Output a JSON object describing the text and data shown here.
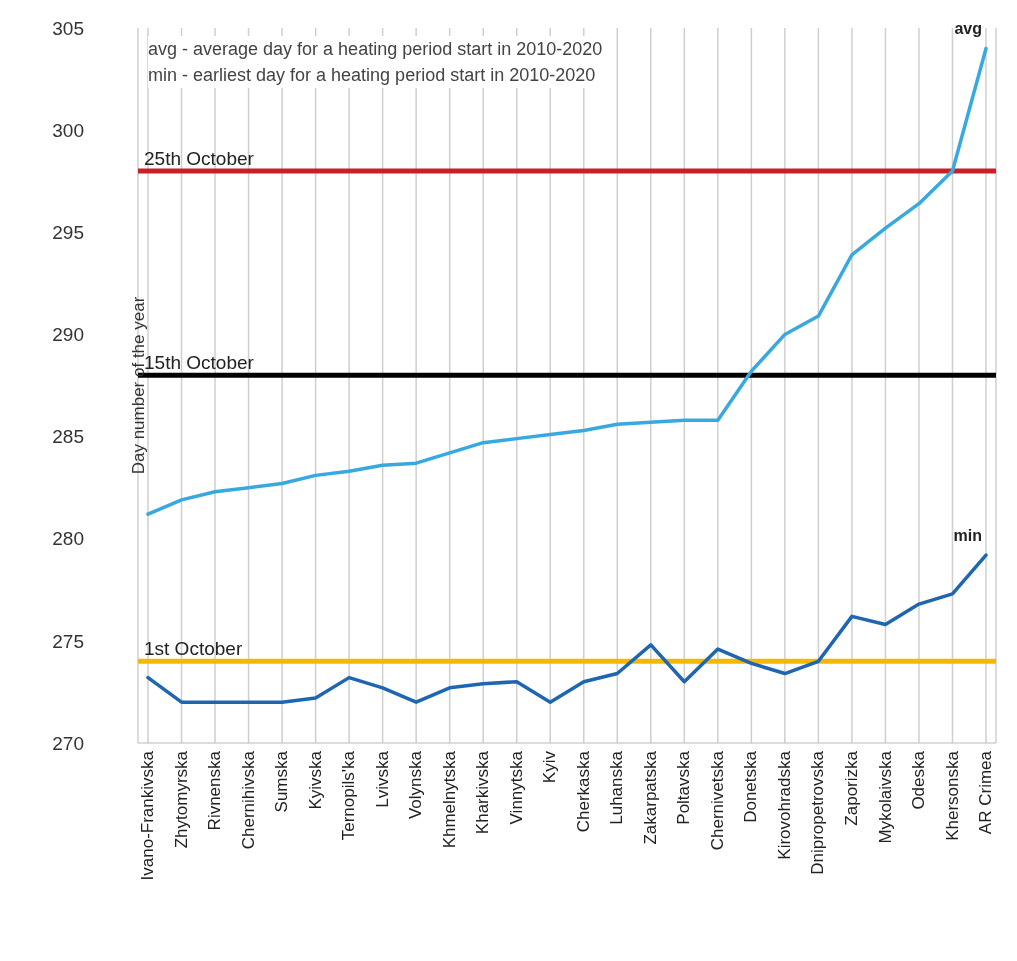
{
  "chart_data": {
    "type": "line",
    "ylabel": "Day number of the year",
    "annotations": [
      "avg - average day for a heating period start in 2010-2020",
      "min - earliest day for a heating period start in 2010-2020"
    ],
    "categories": [
      "Ivano-Frankivska",
      "Zhytomyrska",
      "Rivnenska",
      "Chernihivska",
      "Sumska",
      "Kyivska",
      "Ternopils'ka",
      "Lvivska",
      "Volynska",
      "Khmelnytska",
      "Kharkivska",
      "Vinnytska",
      "Kyiv",
      "Cherkaska",
      "Luhanska",
      "Zakarpatska",
      "Poltavska",
      "Chernivetska",
      "Donetska",
      "Kirovohradska",
      "Dnipropetrovska",
      "Zaporizka",
      "Mykolaivska",
      "Odeska",
      "Khersonska",
      "AR Crimea"
    ],
    "series": [
      {
        "name": "avg",
        "color": "#38a9e0",
        "values": [
          281.2,
          281.9,
          282.3,
          282.5,
          282.7,
          283.1,
          283.3,
          283.6,
          283.7,
          284.2,
          284.7,
          284.9,
          285.1,
          285.3,
          285.6,
          285.7,
          285.8,
          285.8,
          288.2,
          290.0,
          290.9,
          293.9,
          295.2,
          296.4,
          298.0,
          304.0
        ]
      },
      {
        "name": "min",
        "color": "#1f66b0",
        "values": [
          273.2,
          272.0,
          272.0,
          272.0,
          272.0,
          272.2,
          273.2,
          272.7,
          272.0,
          272.7,
          272.9,
          273.0,
          272.0,
          273.0,
          273.4,
          274.8,
          273.0,
          274.6,
          273.9,
          273.4,
          274.0,
          276.2,
          275.8,
          276.8,
          277.3,
          279.2
        ]
      }
    ],
    "ylim": [
      270,
      305
    ],
    "yticks": [
      270,
      275,
      280,
      285,
      290,
      295,
      300,
      305
    ],
    "ref_lines": [
      {
        "axis": "y",
        "value": 298,
        "label": "25th October",
        "color": "#c8202a"
      },
      {
        "axis": "y",
        "value": 288,
        "label": "15th October",
        "color": "#000000"
      },
      {
        "axis": "y",
        "value": 274,
        "label": "1st October",
        "color": "#f5b800"
      }
    ],
    "grid": "x",
    "marker": "none",
    "line_style": "solid"
  }
}
